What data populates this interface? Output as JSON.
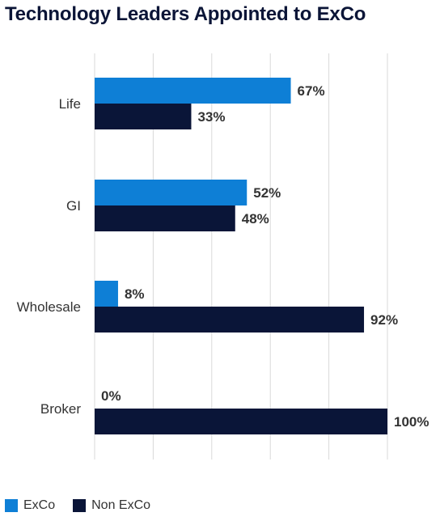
{
  "chart_data": {
    "type": "bar",
    "orientation": "horizontal",
    "title": "Technology Leaders Appointed to ExCo",
    "categories": [
      "Life",
      "GI",
      "Wholesale",
      "Broker"
    ],
    "series": [
      {
        "name": "ExCo",
        "values": [
          67,
          52,
          8,
          0
        ],
        "labels": [
          "67%",
          "52%",
          "8%",
          "0%"
        ],
        "color": "#0e7fd6"
      },
      {
        "name": "Non ExCo",
        "values": [
          33,
          48,
          92,
          100
        ],
        "labels": [
          "33%",
          "48%",
          "92%",
          "100%"
        ],
        "color": "#0a1538"
      }
    ],
    "xlim": [
      0,
      100
    ],
    "grid": true,
    "legend_position": "bottom-left",
    "colors": {
      "title": "#0b1537",
      "label": "#333333",
      "grid": "#d9d9d9"
    }
  }
}
